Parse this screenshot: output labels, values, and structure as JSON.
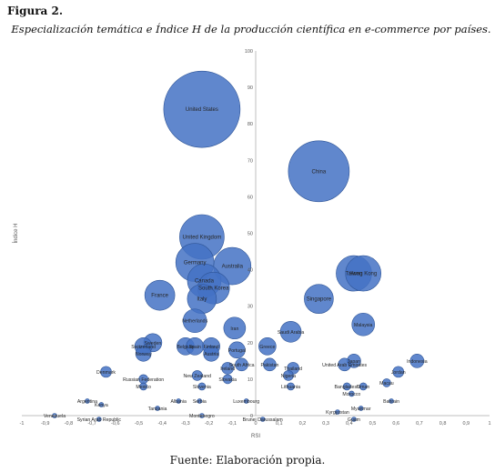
{
  "figure_label": "Figura 2.",
  "figure_title": "Especialización temática e Índice H de la producción científica en e-commerce por países.",
  "source": "Fuente: Elaboración propia.",
  "chart_data": {
    "type": "bubble",
    "xlabel": "RSI",
    "ylabel": "Índice H",
    "xlim": [
      -1,
      1
    ],
    "ylim": [
      0,
      100
    ],
    "x_ticks": [
      "-1",
      "-0,9",
      "-0,8",
      "-0,7",
      "-0,6",
      "-0,5",
      "-0,4",
      "-0,3",
      "-0,2",
      "-0,1",
      "0",
      "0,1",
      "0,2",
      "0,3",
      "0,4",
      "0,5",
      "0,6",
      "0,7",
      "0,8",
      "0,9",
      "1"
    ],
    "y_ticks": [
      "0",
      "10",
      "20",
      "30",
      "40",
      "50",
      "60",
      "70",
      "80",
      "90",
      "100"
    ],
    "grid": false,
    "bubble_color": "#4472C4",
    "points": [
      {
        "label": "United States",
        "x": -0.23,
        "y": 84
      },
      {
        "label": "China",
        "x": 0.27,
        "y": 67
      },
      {
        "label": "United Kingdom",
        "x": -0.23,
        "y": 49
      },
      {
        "label": "Australia",
        "x": -0.1,
        "y": 41
      },
      {
        "label": "Germany",
        "x": -0.26,
        "y": 42
      },
      {
        "label": "Canada",
        "x": -0.22,
        "y": 37
      },
      {
        "label": "South Korea",
        "x": -0.18,
        "y": 35
      },
      {
        "label": "France",
        "x": -0.41,
        "y": 33
      },
      {
        "label": "Italy",
        "x": -0.23,
        "y": 32
      },
      {
        "label": "Netherlands",
        "x": -0.26,
        "y": 26
      },
      {
        "label": "Taiwan",
        "x": 0.42,
        "y": 39
      },
      {
        "label": "Hong Kong",
        "x": 0.46,
        "y": 39
      },
      {
        "label": "Singapore",
        "x": 0.27,
        "y": 32
      },
      {
        "label": "Malaysia",
        "x": 0.46,
        "y": 25
      },
      {
        "label": "Iran",
        "x": -0.09,
        "y": 24
      },
      {
        "label": "Saudi Arabia",
        "x": 0.15,
        "y": 23
      },
      {
        "label": "Greece",
        "x": 0.05,
        "y": 19
      },
      {
        "label": "Sweden",
        "x": -0.44,
        "y": 20
      },
      {
        "label": "Switzerland",
        "x": -0.48,
        "y": 19
      },
      {
        "label": "Norway",
        "x": -0.48,
        "y": 17
      },
      {
        "label": "Belgium",
        "x": -0.3,
        "y": 19
      },
      {
        "label": "Spain",
        "x": -0.26,
        "y": 19
      },
      {
        "label": "Finland",
        "x": -0.19,
        "y": 19
      },
      {
        "label": "Austria",
        "x": -0.19,
        "y": 17
      },
      {
        "label": "Portugal",
        "x": -0.08,
        "y": 18
      },
      {
        "label": "South Africa",
        "x": -0.06,
        "y": 14
      },
      {
        "label": "Ireland",
        "x": -0.12,
        "y": 13
      },
      {
        "label": "Pakistan",
        "x": 0.06,
        "y": 14
      },
      {
        "label": "Thailand",
        "x": 0.16,
        "y": 13
      },
      {
        "label": "Nigeria",
        "x": 0.14,
        "y": 11
      },
      {
        "label": "United Arab Emirates",
        "x": 0.38,
        "y": 14
      },
      {
        "label": "Japan",
        "x": 0.42,
        "y": 15
      },
      {
        "label": "Indonesia",
        "x": 0.69,
        "y": 15
      },
      {
        "label": "Jordan",
        "x": 0.61,
        "y": 12
      },
      {
        "label": "Denmark",
        "x": -0.64,
        "y": 12
      },
      {
        "label": "Russian Federation",
        "x": -0.48,
        "y": 10
      },
      {
        "label": "Mexico",
        "x": -0.48,
        "y": 8
      },
      {
        "label": "New Zealand",
        "x": -0.25,
        "y": 11
      },
      {
        "label": "Slovenia",
        "x": -0.23,
        "y": 8
      },
      {
        "label": "Slovakia",
        "x": -0.12,
        "y": 10
      },
      {
        "label": "Lithuania",
        "x": 0.15,
        "y": 8
      },
      {
        "label": "Bangladesh",
        "x": 0.39,
        "y": 8
      },
      {
        "label": "Oman",
        "x": 0.46,
        "y": 8
      },
      {
        "label": "Macau",
        "x": 0.56,
        "y": 9
      },
      {
        "label": "Morocco",
        "x": 0.41,
        "y": 6
      },
      {
        "label": "Argentina",
        "x": -0.72,
        "y": 4
      },
      {
        "label": "Kenya",
        "x": -0.66,
        "y": 3
      },
      {
        "label": "Albania",
        "x": -0.33,
        "y": 4
      },
      {
        "label": "Serbia",
        "x": -0.24,
        "y": 4
      },
      {
        "label": "Luxembourg",
        "x": -0.04,
        "y": 4
      },
      {
        "label": "Tanzania",
        "x": -0.42,
        "y": 2
      },
      {
        "label": "Bahrain",
        "x": 0.58,
        "y": 4
      },
      {
        "label": "Myanmar",
        "x": 0.45,
        "y": 2
      },
      {
        "label": "Venezuela",
        "x": -0.86,
        "y": 0
      },
      {
        "label": "Syrian Arab Republic",
        "x": -0.67,
        "y": -1
      },
      {
        "label": "Montenegro",
        "x": -0.23,
        "y": 0
      },
      {
        "label": "Brunei Darussalam",
        "x": 0.03,
        "y": -1
      },
      {
        "label": "Kyrgyzstan",
        "x": 0.35,
        "y": 1
      },
      {
        "label": "Guam",
        "x": 0.42,
        "y": -1
      }
    ]
  }
}
